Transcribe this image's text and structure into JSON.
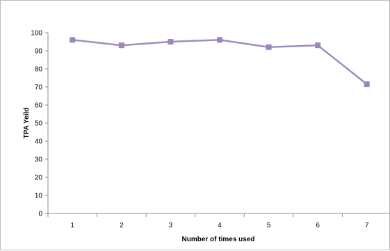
{
  "chart_data": {
    "type": "line",
    "title": "",
    "xlabel": "Number of times used",
    "ylabel": "TPA Yeild",
    "categories": [
      "1",
      "2",
      "3",
      "4",
      "5",
      "6",
      "7"
    ],
    "series": [
      {
        "values": [
          96,
          93,
          95,
          96,
          92,
          93,
          71.5
        ]
      }
    ],
    "ylim": [
      0,
      100
    ],
    "yticks": [
      "0",
      "10",
      "20",
      "30",
      "40",
      "50",
      "60",
      "70",
      "80",
      "90",
      "100"
    ],
    "grid": false,
    "legend": "none",
    "colors": {
      "line": "#a08cbf",
      "marker": "#9b87bb",
      "axis": "#8c8c8c",
      "frame": "#bdbdbd"
    }
  }
}
